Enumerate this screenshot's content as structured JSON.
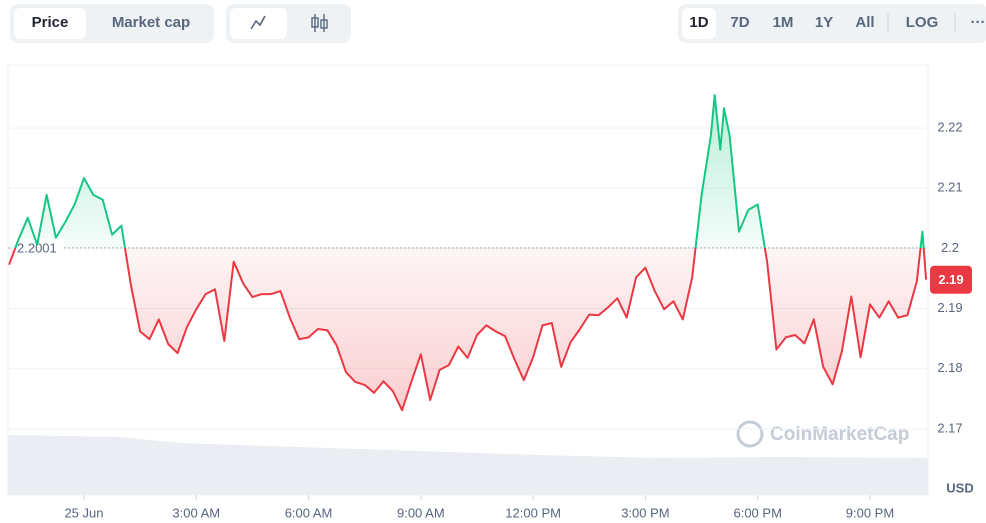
{
  "toolbar": {
    "tabs": [
      "Price",
      "Market cap"
    ],
    "ranges": [
      "1D",
      "7D",
      "1M",
      "1Y",
      "All"
    ],
    "log": "LOG",
    "more": "···"
  },
  "chart_data": {
    "type": "line",
    "unit": "USD",
    "watermark": "CoinMarketCap",
    "x": [
      -2.0,
      -1.75,
      -1.5,
      -1.25,
      -1.0,
      -0.75,
      -0.5,
      -0.25,
      0.0,
      0.25,
      0.5,
      0.75,
      1.0,
      1.25,
      1.5,
      1.75,
      2.0,
      2.25,
      2.5,
      2.75,
      3.0,
      3.25,
      3.5,
      3.75,
      4.0,
      4.25,
      4.5,
      4.75,
      5.0,
      5.25,
      5.5,
      5.75,
      6.0,
      6.25,
      6.5,
      6.75,
      7.0,
      7.25,
      7.5,
      7.75,
      8.0,
      8.25,
      8.5,
      8.75,
      9.0,
      9.25,
      9.5,
      9.75,
      10.0,
      10.25,
      10.5,
      10.75,
      11.0,
      11.25,
      11.5,
      11.75,
      12.0,
      12.25,
      12.5,
      12.75,
      13.0,
      13.25,
      13.5,
      13.75,
      14.0,
      14.25,
      14.5,
      14.75,
      15.0,
      15.25,
      15.5,
      15.75,
      16.0,
      16.25,
      16.5,
      16.75,
      16.85,
      17.0,
      17.1,
      17.25,
      17.5,
      17.75,
      18.0,
      18.25,
      18.5,
      18.75,
      19.0,
      19.25,
      19.5,
      19.75,
      20.0,
      20.25,
      20.5,
      20.75,
      21.0,
      21.25,
      21.5,
      21.75,
      22.0,
      22.25,
      22.4,
      22.5
    ],
    "series": [
      {
        "name": "Price",
        "color_up": "#16c784",
        "color_down": "#ea3943",
        "values": [
          2.1973,
          2.2015,
          2.2051,
          2.2006,
          2.2089,
          2.2018,
          2.2044,
          2.2073,
          2.2117,
          2.2089,
          2.2081,
          2.2023,
          2.2038,
          2.194,
          2.1862,
          2.1849,
          2.1882,
          2.1841,
          2.1826,
          2.1869,
          2.1899,
          2.1924,
          2.1932,
          2.1846,
          2.1978,
          2.1942,
          2.1919,
          2.1924,
          2.1924,
          2.1929,
          2.1885,
          2.1849,
          2.1852,
          2.1866,
          2.1864,
          2.1839,
          2.1794,
          2.1778,
          2.1773,
          2.176,
          2.1779,
          2.1763,
          2.1731,
          2.1779,
          2.1824,
          2.1748,
          2.1798,
          2.1806,
          2.1837,
          2.1818,
          2.1856,
          2.1872,
          2.1862,
          2.1854,
          2.1816,
          2.1781,
          2.1819,
          2.1872,
          2.1876,
          2.1803,
          2.1844,
          2.1866,
          2.189,
          2.1889,
          2.1902,
          2.1917,
          2.1885,
          2.1952,
          2.1968,
          2.1929,
          2.1899,
          2.1912,
          2.1882,
          2.1952,
          2.2089,
          2.2188,
          2.2255,
          2.2164,
          2.2233,
          2.2188,
          2.2028,
          2.2064,
          2.2073,
          2.1978,
          2.1832,
          2.1852,
          2.1856,
          2.1842,
          2.1882,
          2.1803,
          2.1774,
          2.1829,
          2.192,
          2.1819,
          2.1907,
          2.1885,
          2.1912,
          2.1885,
          2.1889,
          2.1945,
          2.2028,
          2.1948
        ]
      }
    ],
    "reference_line": {
      "value": 2.2001,
      "label": "2.2001"
    },
    "current_price": {
      "value": 2.1948,
      "label": "2.19"
    },
    "xlim": [
      -2.03,
      22.55
    ],
    "xticks": [
      {
        "value": 0,
        "label": "25 Jun"
      },
      {
        "value": 3,
        "label": "3:00 AM"
      },
      {
        "value": 6,
        "label": "6:00 AM"
      },
      {
        "value": 9,
        "label": "9:00 AM"
      },
      {
        "value": 12,
        "label": "12:00 PM"
      },
      {
        "value": 15,
        "label": "3:00 PM"
      },
      {
        "value": 18,
        "label": "6:00 PM"
      },
      {
        "value": 21,
        "label": "9:00 PM"
      }
    ],
    "ylim": [
      2.159,
      2.2305
    ],
    "yticks": [
      2.17,
      2.18,
      2.19,
      2.2,
      2.21,
      2.22
    ],
    "grid": true
  }
}
